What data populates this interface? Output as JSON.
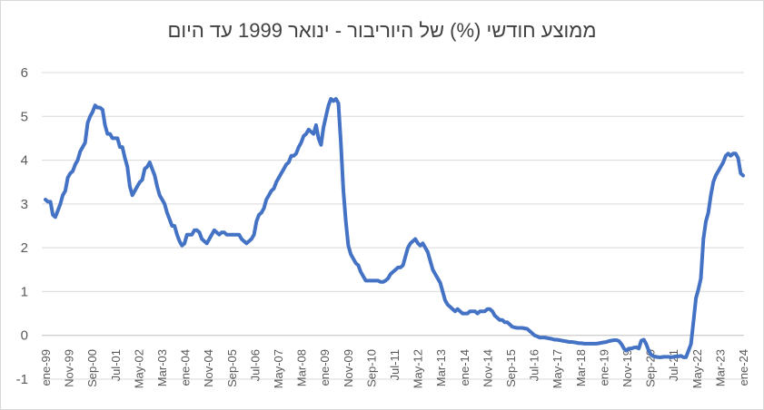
{
  "chart_data": {
    "type": "line",
    "title": "ממוצע חודשי (%) של היוריבור - ינואר 1999 עד היום",
    "xlabel": "",
    "ylabel": "",
    "ylim": [
      -1,
      6
    ],
    "yticks": [
      -1,
      0,
      1,
      2,
      3,
      4,
      5,
      6
    ],
    "grid": "horizontal",
    "line_color": "#4472C4",
    "x_tick_labels": [
      "ene-99",
      "Nov-99",
      "Sep-00",
      "Jul-01",
      "May-02",
      "Mar-03",
      "ene-04",
      "Nov-04",
      "Sep-05",
      "Jul-06",
      "May-07",
      "Mar-08",
      "ene-09",
      "Nov-09",
      "Sep-10",
      "Jul-11",
      "May-12",
      "Mar-13",
      "ene-14",
      "Nov-14",
      "Sep-15",
      "Jul-16",
      "May-17",
      "Mar-18",
      "ene-19",
      "Nov-19",
      "Sep-20",
      "Jul-21",
      "May-22",
      "Mar-23",
      "ene-24"
    ],
    "series": [
      {
        "values": [
          3.1,
          3.05,
          3.05,
          2.75,
          2.7,
          2.85,
          3.0,
          3.2,
          3.3,
          3.6,
          3.7,
          3.75,
          3.9,
          4.0,
          4.2,
          4.3,
          4.4,
          4.85,
          5.0,
          5.1,
          5.25,
          5.2,
          5.2,
          5.15,
          4.8,
          4.6,
          4.6,
          4.5,
          4.5,
          4.5,
          4.3,
          4.3,
          4.05,
          3.85,
          3.4,
          3.2,
          3.3,
          3.4,
          3.5,
          3.55,
          3.8,
          3.85,
          3.95,
          3.8,
          3.65,
          3.4,
          3.2,
          3.1,
          3.0,
          2.8,
          2.65,
          2.5,
          2.5,
          2.3,
          2.15,
          2.05,
          2.1,
          2.3,
          2.3,
          2.3,
          2.4,
          2.4,
          2.35,
          2.2,
          2.15,
          2.1,
          2.2,
          2.3,
          2.4,
          2.35,
          2.3,
          2.35,
          2.35,
          2.3,
          2.3,
          2.3,
          2.3,
          2.3,
          2.3,
          2.2,
          2.15,
          2.1,
          2.15,
          2.2,
          2.3,
          2.6,
          2.75,
          2.8,
          2.9,
          3.1,
          3.2,
          3.3,
          3.35,
          3.5,
          3.6,
          3.7,
          3.8,
          3.9,
          3.95,
          4.1,
          4.1,
          4.15,
          4.3,
          4.4,
          4.55,
          4.6,
          4.7,
          4.65,
          4.6,
          4.8,
          4.5,
          4.35,
          4.75,
          5.0,
          5.25,
          5.4,
          5.35,
          5.4,
          5.3,
          4.4,
          3.3,
          2.6,
          2.05,
          1.85,
          1.75,
          1.65,
          1.6,
          1.45,
          1.35,
          1.25,
          1.25,
          1.25,
          1.25,
          1.25,
          1.25,
          1.22,
          1.22,
          1.25,
          1.3,
          1.4,
          1.45,
          1.5,
          1.55,
          1.55,
          1.6,
          1.8,
          2.0,
          2.1,
          2.15,
          2.2,
          2.1,
          2.05,
          2.1,
          2.0,
          1.9,
          1.7,
          1.5,
          1.4,
          1.3,
          1.2,
          1.0,
          0.8,
          0.7,
          0.65,
          0.6,
          0.55,
          0.6,
          0.55,
          0.5,
          0.5,
          0.5,
          0.55,
          0.55,
          0.55,
          0.5,
          0.55,
          0.55,
          0.55,
          0.6,
          0.6,
          0.55,
          0.45,
          0.4,
          0.35,
          0.35,
          0.3,
          0.3,
          0.25,
          0.2,
          0.18,
          0.17,
          0.17,
          0.17,
          0.16,
          0.15,
          0.1,
          0.05,
          0.0,
          -0.02,
          -0.05,
          -0.05,
          -0.05,
          -0.06,
          -0.07,
          -0.08,
          -0.1,
          -0.1,
          -0.11,
          -0.12,
          -0.13,
          -0.14,
          -0.15,
          -0.15,
          -0.16,
          -0.17,
          -0.18,
          -0.18,
          -0.19,
          -0.19,
          -0.19,
          -0.19,
          -0.19,
          -0.19,
          -0.18,
          -0.17,
          -0.16,
          -0.15,
          -0.13,
          -0.12,
          -0.11,
          -0.11,
          -0.13,
          -0.2,
          -0.3,
          -0.35,
          -0.3,
          -0.3,
          -0.28,
          -0.27,
          -0.3,
          -0.12,
          -0.1,
          -0.2,
          -0.35,
          -0.45,
          -0.48,
          -0.49,
          -0.5,
          -0.5,
          -0.49,
          -0.49,
          -0.49,
          -0.5,
          -0.49,
          -0.48,
          -0.48,
          -0.47,
          -0.5,
          -0.5,
          -0.35,
          -0.2,
          0.3,
          0.85,
          1.05,
          1.3,
          2.2,
          2.6,
          2.8,
          3.2,
          3.5,
          3.65,
          3.75,
          3.85,
          3.95,
          4.1,
          4.15,
          4.1,
          4.15,
          4.15,
          4.05,
          3.7,
          3.65
        ]
      }
    ]
  }
}
